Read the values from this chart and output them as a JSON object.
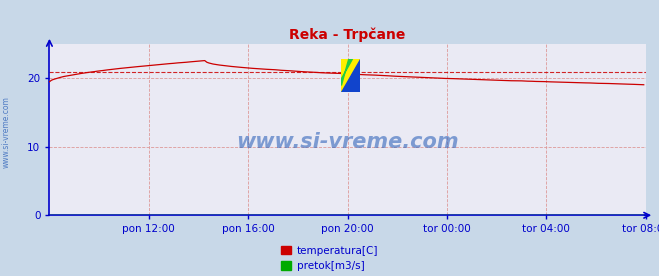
{
  "title": "Reka - Trpčane",
  "bg_color": "#c8d8e8",
  "plot_bg_color": "#eaeaf4",
  "x_labels": [
    "pon 12:00",
    "pon 16:00",
    "pon 20:00",
    "tor 00:00",
    "tor 04:00",
    "tor 08:00"
  ],
  "y_ticks": [
    0,
    10,
    20
  ],
  "ylim": [
    0,
    25
  ],
  "xlim": [
    0,
    288
  ],
  "dashed_line_y": 20.9,
  "temp_color": "#cc0000",
  "pretok_color": "#00aa00",
  "grid_color": "#dd9999",
  "watermark_text": "www.si-vreme.com",
  "watermark_color": "#3366bb",
  "legend_temp": "temperatura[C]",
  "legend_pretok": "pretok[m3/s]",
  "axis_color": "#0000cc",
  "label_color": "#0000cc",
  "title_color": "#cc0000",
  "sidewater_text": "www.si-vreme.com",
  "sidewater_color": "#3366bb",
  "n_points": 288,
  "temp_start": 19.5,
  "temp_peak": 22.6,
  "temp_peak_idx": 75,
  "temp_end": 19.0,
  "pretok_val": 0.02
}
